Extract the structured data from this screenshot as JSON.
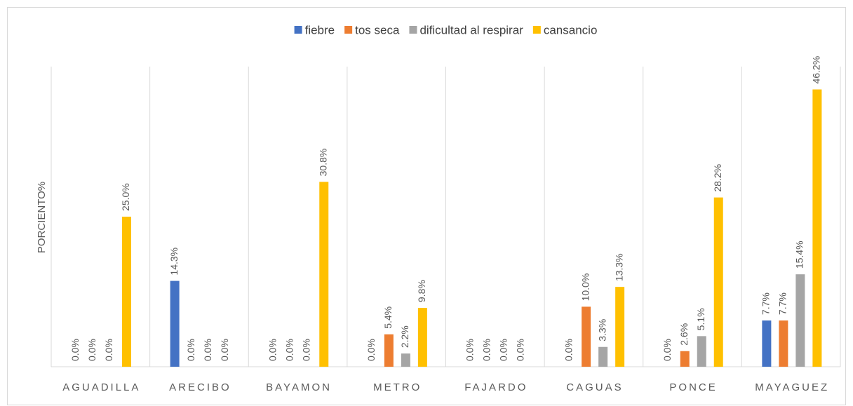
{
  "chart_data": {
    "type": "bar",
    "ylabel": "PORCIENTO%",
    "categories": [
      "AGUADILLA",
      "ARECIBO",
      "BAYAMON",
      "METRO",
      "FAJARDO",
      "CAGUAS",
      "PONCE",
      "MAYAGUEZ"
    ],
    "ylim": [
      0,
      50
    ],
    "legend": "top",
    "series": [
      {
        "name": "fiebre",
        "color": "#4472c4",
        "values": [
          0,
          14.3,
          0,
          0,
          0,
          0,
          0,
          7.7
        ],
        "value_labels": [
          "0.0%",
          "14.3%",
          "0.0%",
          "0.0%",
          "0.0%",
          "0.0%",
          "0.0%",
          "7.7%"
        ]
      },
      {
        "name": "tos seca",
        "color": "#ed7d31",
        "values": [
          0,
          0,
          0,
          5.4,
          0,
          10.0,
          2.6,
          7.7
        ],
        "value_labels": [
          "0.0%",
          "0.0%",
          "0.0%",
          "5.4%",
          "0.0%",
          "10.0%",
          "2.6%",
          "7.7%"
        ]
      },
      {
        "name": "dificultad al respirar",
        "color": "#a5a5a5",
        "values": [
          0,
          0,
          0,
          2.2,
          0,
          3.3,
          5.1,
          15.4
        ],
        "value_labels": [
          "0.0%",
          "0.0%",
          "0.0%",
          "2.2%",
          "0.0%",
          "3.3%",
          "5.1%",
          "15.4%"
        ]
      },
      {
        "name": "cansancio",
        "color": "#ffc000",
        "values": [
          25.0,
          0,
          30.8,
          9.8,
          0,
          13.3,
          28.2,
          46.2
        ],
        "value_labels": [
          "25.0%",
          "0.0%",
          "30.8%",
          "9.8%",
          "0.0%",
          "13.3%",
          "28.2%",
          "46.2%"
        ]
      }
    ]
  }
}
